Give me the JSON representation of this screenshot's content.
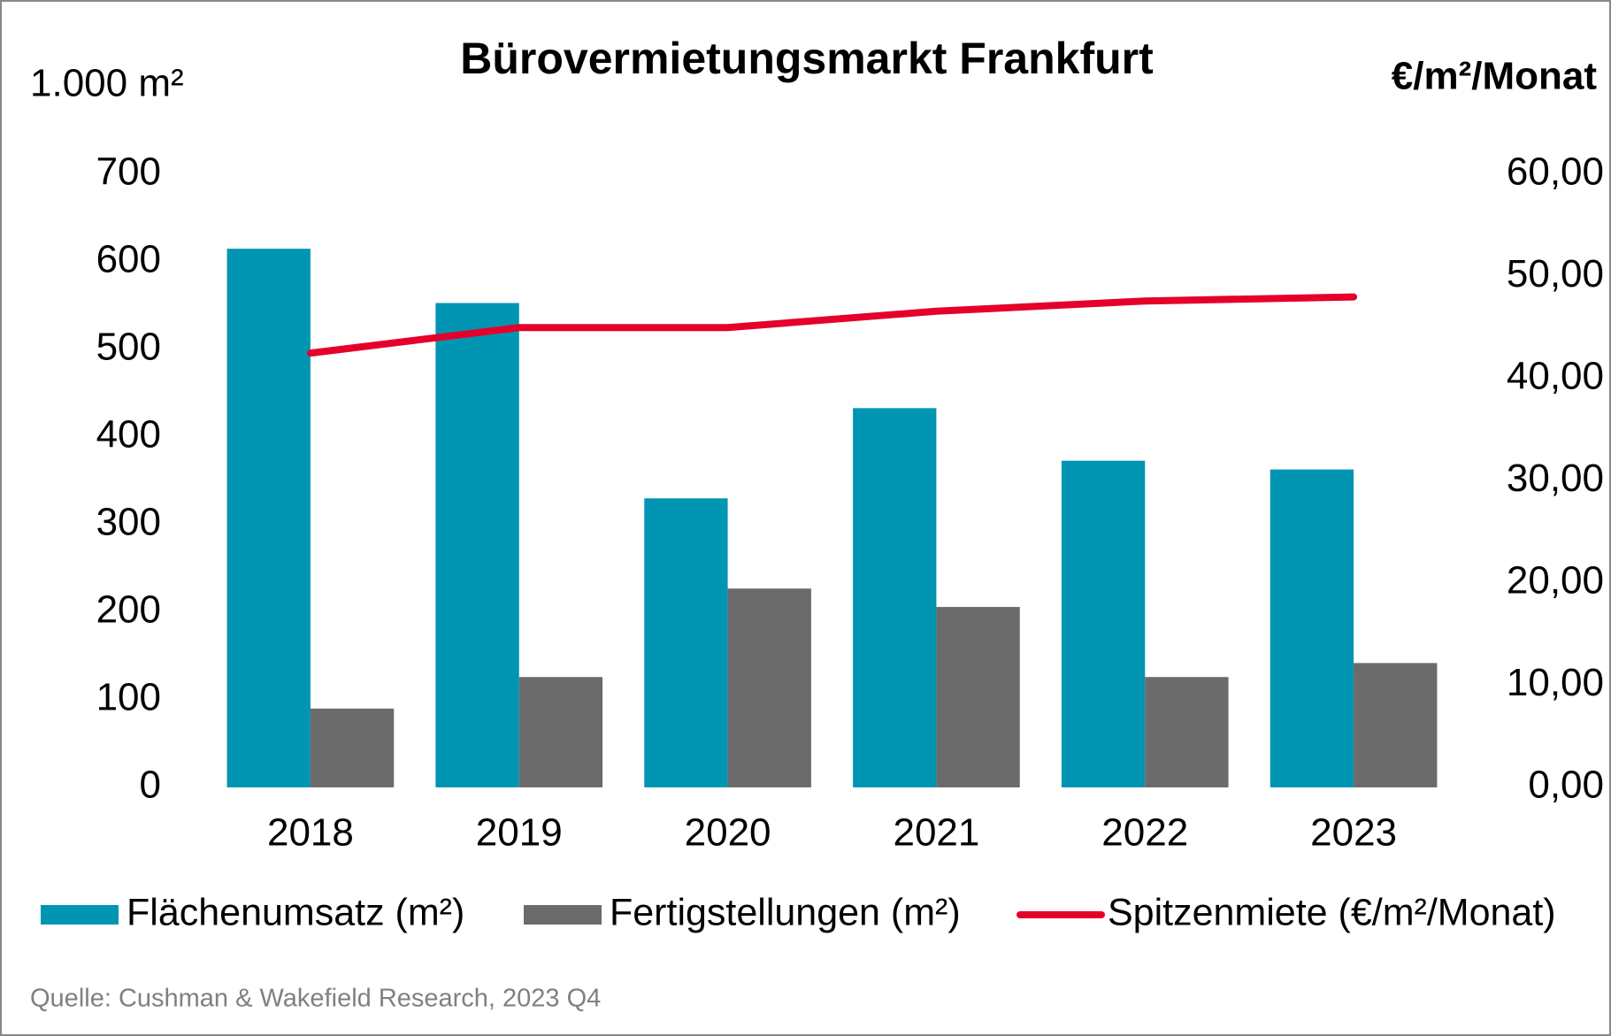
{
  "chart_data": {
    "type": "bar",
    "title": "Bürovermietungsmarkt Frankfurt",
    "y_label": "1.000 m²",
    "y2_label": "€/m²/Monat",
    "source": "Quelle: Cushman & Wakefield Research, 2023 Q4",
    "categories": [
      "2018",
      "2019",
      "2020",
      "2021",
      "2022",
      "2023"
    ],
    "series": [
      {
        "name": "Flächenumsatz (m²)",
        "type": "bar",
        "color": "#0095b3",
        "values": [
          615,
          553,
          330,
          433,
          373,
          363
        ]
      },
      {
        "name": "Fertigstellungen (m²)",
        "type": "bar",
        "color": "#6b6b6b",
        "values": [
          90,
          126,
          227,
          206,
          126,
          142
        ]
      },
      {
        "name": "Spitzenmiete (€/m²/Monat)",
        "type": "line",
        "axis": "y2",
        "color": "#e4002b",
        "values": [
          42.5,
          45.0,
          45.0,
          46.6,
          47.6,
          48.0
        ]
      }
    ],
    "ylim": [
      0,
      700
    ],
    "yticks": [
      0,
      100,
      200,
      300,
      400,
      500,
      600,
      700
    ],
    "y2lim": [
      0,
      60
    ],
    "y2ticks": [
      {
        "value": 0,
        "label": "0,00"
      },
      {
        "value": 10,
        "label": "10,00"
      },
      {
        "value": 20,
        "label": "20,00"
      },
      {
        "value": 30,
        "label": "30,00"
      },
      {
        "value": 40,
        "label": "40,00"
      },
      {
        "value": 50,
        "label": "50,00"
      },
      {
        "value": 60,
        "label": "60,00"
      }
    ],
    "grid": false
  }
}
